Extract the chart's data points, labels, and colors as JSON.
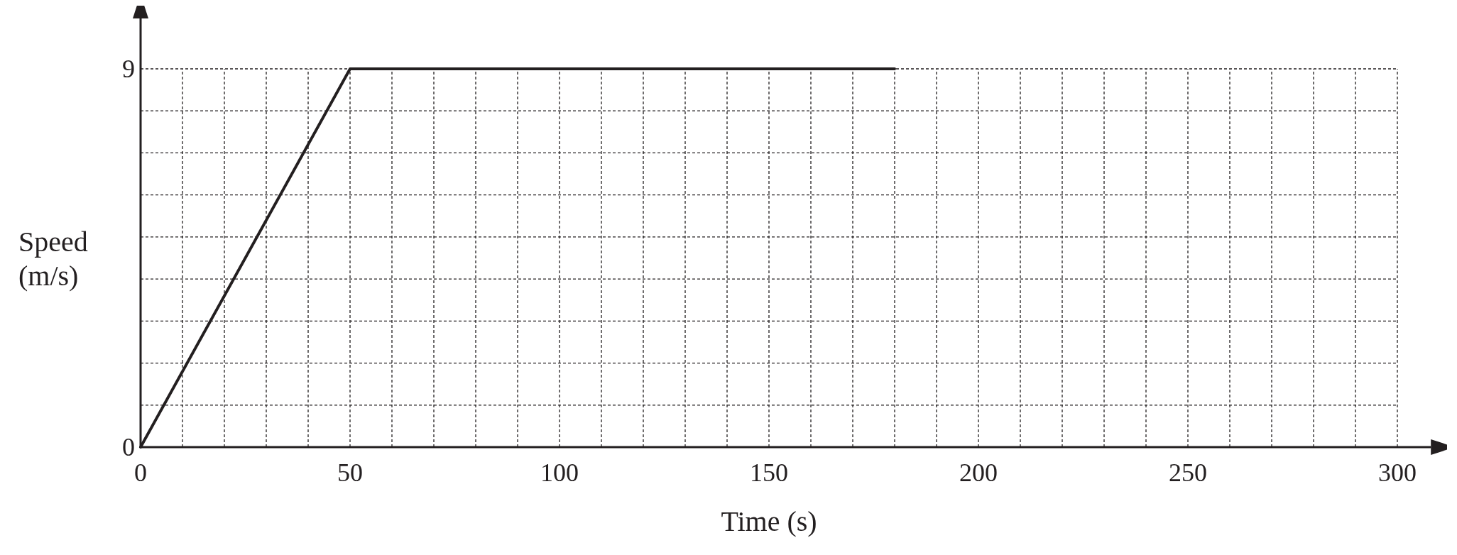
{
  "chart_data": {
    "type": "line",
    "xlabel": "Time (s)",
    "ylabel": "Speed (m/s)",
    "x": [
      0,
      50,
      180
    ],
    "series": [
      {
        "color": "#231f20",
        "values": [
          0,
          9,
          9
        ]
      }
    ],
    "xlim": [
      0,
      308
    ],
    "ylim": [
      0,
      10.2
    ],
    "xticks": [
      0,
      {
        "value": 10,
        "label": null
      },
      {
        "value": 20,
        "label": null
      },
      {
        "value": 30,
        "label": null
      },
      {
        "value": 40,
        "label": null
      },
      50,
      {
        "value": 60,
        "label": null
      },
      {
        "value": 70,
        "label": null
      },
      {
        "value": 80,
        "label": null
      },
      {
        "value": 90,
        "label": null
      },
      100,
      {
        "value": 110,
        "label": null
      },
      {
        "value": 120,
        "label": null
      },
      {
        "value": 130,
        "label": null
      },
      {
        "value": 140,
        "label": null
      },
      150,
      {
        "value": 160,
        "label": null
      },
      {
        "value": 170,
        "label": null
      },
      {
        "value": 180,
        "label": null
      },
      {
        "value": 190,
        "label": null
      },
      200,
      {
        "value": 210,
        "label": null
      },
      {
        "value": 220,
        "label": null
      },
      {
        "value": 230,
        "label": null
      },
      {
        "value": 240,
        "label": null
      },
      250,
      {
        "value": 260,
        "label": null
      },
      {
        "value": 270,
        "label": null
      },
      {
        "value": 280,
        "label": null
      },
      {
        "value": 290,
        "label": null
      },
      300
    ],
    "yticks": [
      0,
      {
        "value": 1,
        "label": null
      },
      {
        "value": 2,
        "label": null
      },
      {
        "value": 3,
        "label": null
      },
      {
        "value": 4,
        "label": null
      },
      {
        "value": 5,
        "label": null
      },
      {
        "value": 6,
        "label": null
      },
      {
        "value": 7,
        "label": null
      },
      {
        "value": 8,
        "label": null
      },
      9
    ],
    "grid": true,
    "marker": "none",
    "line_style": "solid"
  }
}
